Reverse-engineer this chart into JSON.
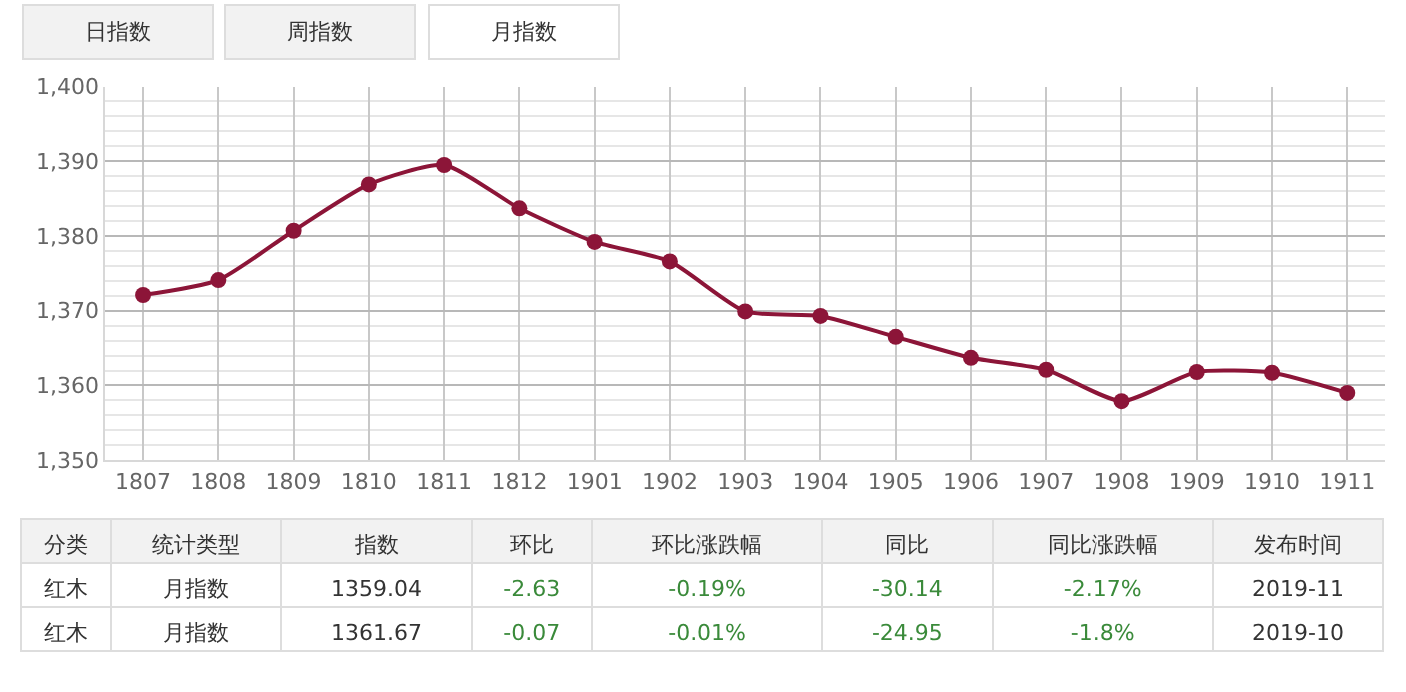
{
  "chart_data": [
    {
      "type": "line",
      "categories": [
        "1807",
        "1808",
        "1809",
        "1810",
        "1811",
        "1812",
        "1901",
        "1902",
        "1903",
        "1904",
        "1905",
        "1906",
        "1907",
        "1908",
        "1909",
        "1910",
        "1911"
      ],
      "series": [
        {
          "color": "#8c1538",
          "values": [
            1372.1,
            1374.1,
            1380.7,
            1386.9,
            1389.5,
            1383.7,
            1379.2,
            1376.6,
            1369.9,
            1369.3,
            1366.5,
            1363.7,
            1362.1,
            1357.9,
            1361.8,
            1361.7,
            1359.0
          ]
        }
      ],
      "ylim": [
        1350,
        1400
      ],
      "yticks": [
        {
          "value": 1350,
          "label": "1,350"
        },
        {
          "value": 1360,
          "label": "1,360"
        },
        {
          "value": 1370,
          "label": "1,370"
        },
        {
          "value": 1380,
          "label": "1,380"
        },
        {
          "value": 1390,
          "label": "1,390"
        },
        {
          "value": 1400,
          "label": "1,400"
        }
      ],
      "grid": true,
      "marker": "circle",
      "line_style": "solid",
      "legend": false,
      "annotations": [
        "日指数",
        "周指数",
        "月指数"
      ]
    },
    {
      "type": "other",
      "categories": [
        "分类",
        "统计类型",
        "指数",
        "环比",
        "环比涨跌幅",
        "同比",
        "同比涨跌幅",
        "发布时间"
      ],
      "cell_labels": [
        [
          "红木",
          "月指数",
          "1359.04",
          "-2.63",
          "-0.19%",
          "-30.14",
          "-2.17%",
          "2019-11"
        ],
        [
          "红木",
          "月指数",
          "1361.67",
          "-0.07",
          "-0.01%",
          "-24.95",
          "-1.8%",
          "2019-10"
        ]
      ]
    }
  ]
}
